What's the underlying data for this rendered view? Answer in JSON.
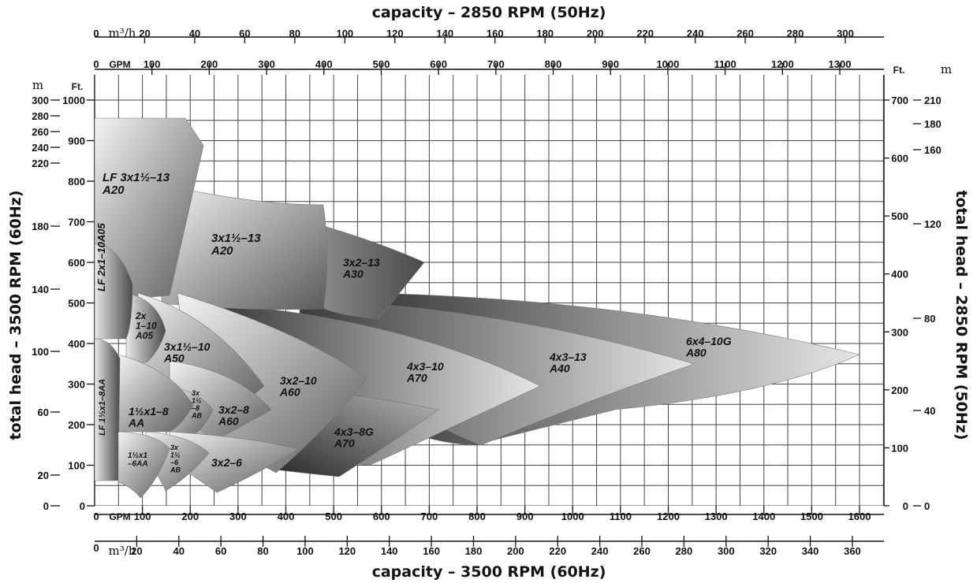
{
  "chart_data": {
    "type": "area",
    "title_top": "capacity – 2850 RPM (50Hz)",
    "title_bottom": "capacity – 3500 RPM (60Hz)",
    "ylabel_left": "total head – 3500 RPM (60Hz)",
    "ylabel_right": "total head – 2850 RPM (50Hz)",
    "grid": true,
    "axes": {
      "top_m3h": {
        "unit": "m³/h",
        "zero": "0",
        "range": [
          0,
          300
        ],
        "ticks": [
          20,
          40,
          60,
          80,
          100,
          120,
          140,
          160,
          180,
          200,
          220,
          240,
          260,
          280,
          300
        ]
      },
      "top_gpm": {
        "unit": "GPM",
        "zero": "0",
        "range": [
          0,
          1350
        ],
        "ticks": [
          100,
          200,
          300,
          400,
          500,
          600,
          700,
          800,
          900,
          1000,
          1100,
          1200,
          1300
        ]
      },
      "bottom_gpm": {
        "unit": "GPM",
        "zero": "0",
        "range": [
          0,
          1600
        ],
        "ticks": [
          100,
          200,
          300,
          400,
          500,
          600,
          700,
          800,
          900,
          1000,
          1100,
          1200,
          1300,
          1400,
          1500,
          1600
        ]
      },
      "bottom_m3h": {
        "unit": "m³/h",
        "zero": "0",
        "range": [
          0,
          360
        ],
        "ticks": [
          20,
          40,
          60,
          80,
          100,
          120,
          140,
          160,
          180,
          200,
          220,
          240,
          260,
          280,
          300,
          320,
          340,
          360
        ]
      },
      "left_m": {
        "unit": "m",
        "ticks": [
          0,
          20,
          60,
          100,
          140,
          180,
          220,
          240,
          260,
          280,
          300
        ]
      },
      "left_ft": {
        "unit": "Ft.",
        "ticks": [
          0,
          100,
          200,
          300,
          400,
          500,
          600,
          700,
          800,
          900,
          1000
        ]
      },
      "right_ft": {
        "unit": "Ft.",
        "ticks": [
          0,
          100,
          200,
          300,
          400,
          500,
          600,
          700
        ]
      },
      "right_m": {
        "unit": "m",
        "ticks": [
          0,
          40,
          80,
          120,
          160,
          180,
          210
        ]
      }
    },
    "pump_ranges": [
      {
        "label": "LF 3x1½–13\nA20",
        "max_gpm": 220,
        "max_head_ft": 900
      },
      {
        "label": "3x1½–13\nA20",
        "max_gpm": 460,
        "max_head_ft": 650
      },
      {
        "label": "3x2–13\nA30",
        "max_gpm": 650,
        "max_head_ft": 610
      },
      {
        "label": "LF 2x1–10A05",
        "max_gpm": 70,
        "max_head_ft": 510
      },
      {
        "label": "2x\n1–10\nA05",
        "max_gpm": 150,
        "max_head_ft": 420
      },
      {
        "label": "3x1½–10\nA50",
        "max_gpm": 340,
        "max_head_ft": 405
      },
      {
        "label": "3x2–10\nA60",
        "max_gpm": 560,
        "max_head_ft": 390
      },
      {
        "label": "4x3–10\nA70",
        "max_gpm": 880,
        "max_head_ft": 350
      },
      {
        "label": "4x3–13\nA40",
        "max_gpm": 1200,
        "max_head_ft": 380
      },
      {
        "label": "6x4–10G\nA80",
        "max_gpm": 1600,
        "max_head_ft": 390
      },
      {
        "label": "LF 1½x1–8AA",
        "max_gpm": 40,
        "max_head_ft": 300
      },
      {
        "label": "1½x1–8\nAA",
        "max_gpm": 190,
        "max_head_ft": 290
      },
      {
        "label": "3x\n1½\n–8\nAB",
        "max_gpm": 260,
        "max_head_ft": 240
      },
      {
        "label": "3x2–8\nA60",
        "max_gpm": 340,
        "max_head_ft": 260
      },
      {
        "label": "4x3–8G\nA70",
        "max_gpm": 660,
        "max_head_ft": 240
      },
      {
        "label": "1½x1\n–6AA",
        "max_gpm": 160,
        "max_head_ft": 140
      },
      {
        "label": "3x\n1½\n–6\nAB",
        "max_gpm": 210,
        "max_head_ft": 150
      },
      {
        "label": "3x2–6",
        "max_gpm": 390,
        "max_head_ft": 155
      }
    ]
  }
}
